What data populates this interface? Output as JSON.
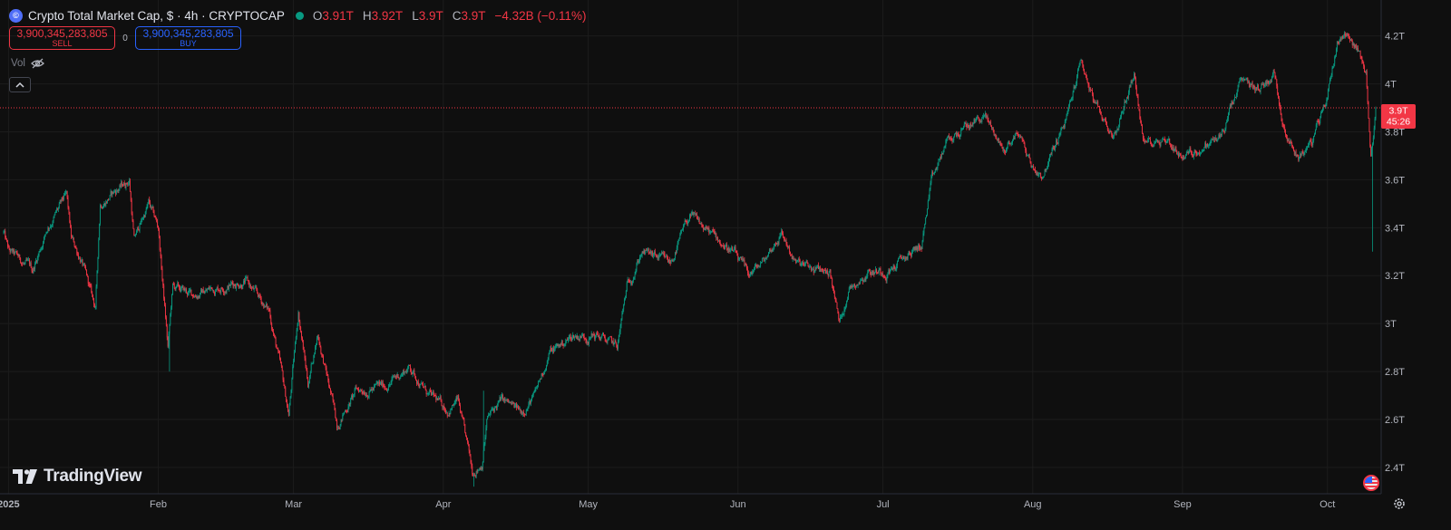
{
  "header": {
    "symbol_icon": "cryptocap-icon",
    "title": "Crypto Total Market Cap, $ · 4h · CRYPTOCAP",
    "status_color": "#089981",
    "ohlc": [
      {
        "label": "O",
        "value": "3.91T"
      },
      {
        "label": "H",
        "value": "3.92T"
      },
      {
        "label": "L",
        "value": "3.9T"
      },
      {
        "label": "C",
        "value": "3.9T"
      }
    ],
    "change": "−4.32B (−0.11%)"
  },
  "trade": {
    "sell_price": "3,900,345,283,805",
    "sell_label": "SELL",
    "spread": "0",
    "buy_price": "3,900,345,283,805",
    "buy_label": "BUY"
  },
  "indicators": {
    "vol_label": "Vol",
    "vol_icon": "eye-off-icon"
  },
  "brand": {
    "name": "TradingView",
    "icon": "tradingview-logo-icon"
  },
  "price_marker": {
    "value": "3.9T",
    "countdown": "45:26"
  },
  "colors": {
    "up": "#089981",
    "down": "#f23645",
    "background": "#0f0f0f",
    "grid": "#1c1c1c",
    "axis_text": "#b2b5be"
  },
  "chart_data": {
    "type": "candlestick",
    "interval": "4h",
    "y_ticks": [
      "2.4T",
      "2.6T",
      "2.8T",
      "3T",
      "3.2T",
      "3.4T",
      "3.6T",
      "3.8T",
      "4T",
      "4.2T"
    ],
    "y_range_T": [
      2.29,
      4.35
    ],
    "x_range": [
      "2024-12-31",
      "2025-10-11"
    ],
    "x_ticks": [
      {
        "label": "2025",
        "date": "2025-01-01",
        "bold": true
      },
      {
        "label": "Feb",
        "date": "2025-02-01"
      },
      {
        "label": "Mar",
        "date": "2025-03-01"
      },
      {
        "label": "Apr",
        "date": "2025-04-01"
      },
      {
        "label": "May",
        "date": "2025-05-01"
      },
      {
        "label": "Jun",
        "date": "2025-06-01"
      },
      {
        "label": "Jul",
        "date": "2025-07-01"
      },
      {
        "label": "Aug",
        "date": "2025-08-01"
      },
      {
        "label": "Sep",
        "date": "2025-09-01"
      },
      {
        "label": "Oct",
        "date": "2025-10-01"
      }
    ],
    "last_price_T": 3.9,
    "price_path_T": [
      [
        "2024-12-31",
        3.38
      ],
      [
        "2025-01-01",
        3.3
      ],
      [
        "2025-01-03",
        3.27
      ],
      [
        "2025-01-06",
        3.22
      ],
      [
        "2025-01-09",
        3.4
      ],
      [
        "2025-01-13",
        3.53
      ],
      [
        "2025-01-14",
        3.35
      ],
      [
        "2025-01-16",
        3.27
      ],
      [
        "2025-01-19",
        3.06
      ],
      [
        "2025-01-20",
        3.5
      ],
      [
        "2025-01-23",
        3.55
      ],
      [
        "2025-01-26",
        3.6
      ],
      [
        "2025-01-27",
        3.35
      ],
      [
        "2025-01-30",
        3.5
      ],
      [
        "2025-02-01",
        3.4
      ],
      [
        "2025-02-03",
        2.9
      ],
      [
        "2025-02-04",
        3.15
      ],
      [
        "2025-02-08",
        3.12
      ],
      [
        "2025-02-13",
        3.15
      ],
      [
        "2025-02-19",
        3.18
      ],
      [
        "2025-02-24",
        3.05
      ],
      [
        "2025-02-26",
        2.85
      ],
      [
        "2025-02-28",
        2.62
      ],
      [
        "2025-03-02",
        3.05
      ],
      [
        "2025-03-04",
        2.75
      ],
      [
        "2025-03-06",
        2.96
      ],
      [
        "2025-03-10",
        2.58
      ],
      [
        "2025-03-14",
        2.72
      ],
      [
        "2025-03-20",
        2.74
      ],
      [
        "2025-03-25",
        2.82
      ],
      [
        "2025-03-29",
        2.7
      ],
      [
        "2025-04-02",
        2.64
      ],
      [
        "2025-04-04",
        2.68
      ],
      [
        "2025-04-07",
        2.38
      ],
      [
        "2025-04-09",
        2.42
      ],
      [
        "2025-04-10",
        2.6
      ],
      [
        "2025-04-13",
        2.68
      ],
      [
        "2025-04-17",
        2.63
      ],
      [
        "2025-04-20",
        2.7
      ],
      [
        "2025-04-23",
        2.88
      ],
      [
        "2025-04-28",
        2.95
      ],
      [
        "2025-05-03",
        2.95
      ],
      [
        "2025-05-07",
        2.9
      ],
      [
        "2025-05-09",
        3.15
      ],
      [
        "2025-05-12",
        3.3
      ],
      [
        "2025-05-18",
        3.25
      ],
      [
        "2025-05-22",
        3.45
      ],
      [
        "2025-05-26",
        3.38
      ],
      [
        "2025-05-31",
        3.3
      ],
      [
        "2025-06-03",
        3.2
      ],
      [
        "2025-06-06",
        3.25
      ],
      [
        "2025-06-10",
        3.38
      ],
      [
        "2025-06-13",
        3.25
      ],
      [
        "2025-06-17",
        3.22
      ],
      [
        "2025-06-20",
        3.22
      ],
      [
        "2025-06-22",
        3.0
      ],
      [
        "2025-06-24",
        3.15
      ],
      [
        "2025-06-28",
        3.22
      ],
      [
        "2025-07-02",
        3.22
      ],
      [
        "2025-07-06",
        3.28
      ],
      [
        "2025-07-09",
        3.33
      ],
      [
        "2025-07-11",
        3.58
      ],
      [
        "2025-07-14",
        3.75
      ],
      [
        "2025-07-17",
        3.8
      ],
      [
        "2025-07-22",
        3.87
      ],
      [
        "2025-07-26",
        3.72
      ],
      [
        "2025-07-29",
        3.8
      ],
      [
        "2025-08-01",
        3.65
      ],
      [
        "2025-08-03",
        3.62
      ],
      [
        "2025-08-08",
        3.85
      ],
      [
        "2025-08-11",
        4.1
      ],
      [
        "2025-08-14",
        3.9
      ],
      [
        "2025-08-18",
        3.78
      ],
      [
        "2025-08-22",
        4.05
      ],
      [
        "2025-08-24",
        3.75
      ],
      [
        "2025-08-28",
        3.78
      ],
      [
        "2025-09-01",
        3.7
      ],
      [
        "2025-09-05",
        3.73
      ],
      [
        "2025-09-09",
        3.78
      ],
      [
        "2025-09-13",
        4.0
      ],
      [
        "2025-09-17",
        3.98
      ],
      [
        "2025-09-20",
        4.05
      ],
      [
        "2025-09-22",
        3.82
      ],
      [
        "2025-09-25",
        3.7
      ],
      [
        "2025-09-28",
        3.76
      ],
      [
        "2025-10-01",
        3.95
      ],
      [
        "2025-10-03",
        4.18
      ],
      [
        "2025-10-05",
        4.22
      ],
      [
        "2025-10-07",
        4.15
      ],
      [
        "2025-10-09",
        4.05
      ],
      [
        "2025-10-10",
        3.7
      ],
      [
        "2025-10-11",
        3.88
      ]
    ],
    "notable_wicks_T": [
      {
        "date": "2025-02-03",
        "low": 2.8
      },
      {
        "date": "2025-04-07",
        "low": 2.32
      },
      {
        "date": "2025-04-09",
        "high": 2.72
      },
      {
        "date": "2025-10-10",
        "low": 3.3
      }
    ]
  }
}
